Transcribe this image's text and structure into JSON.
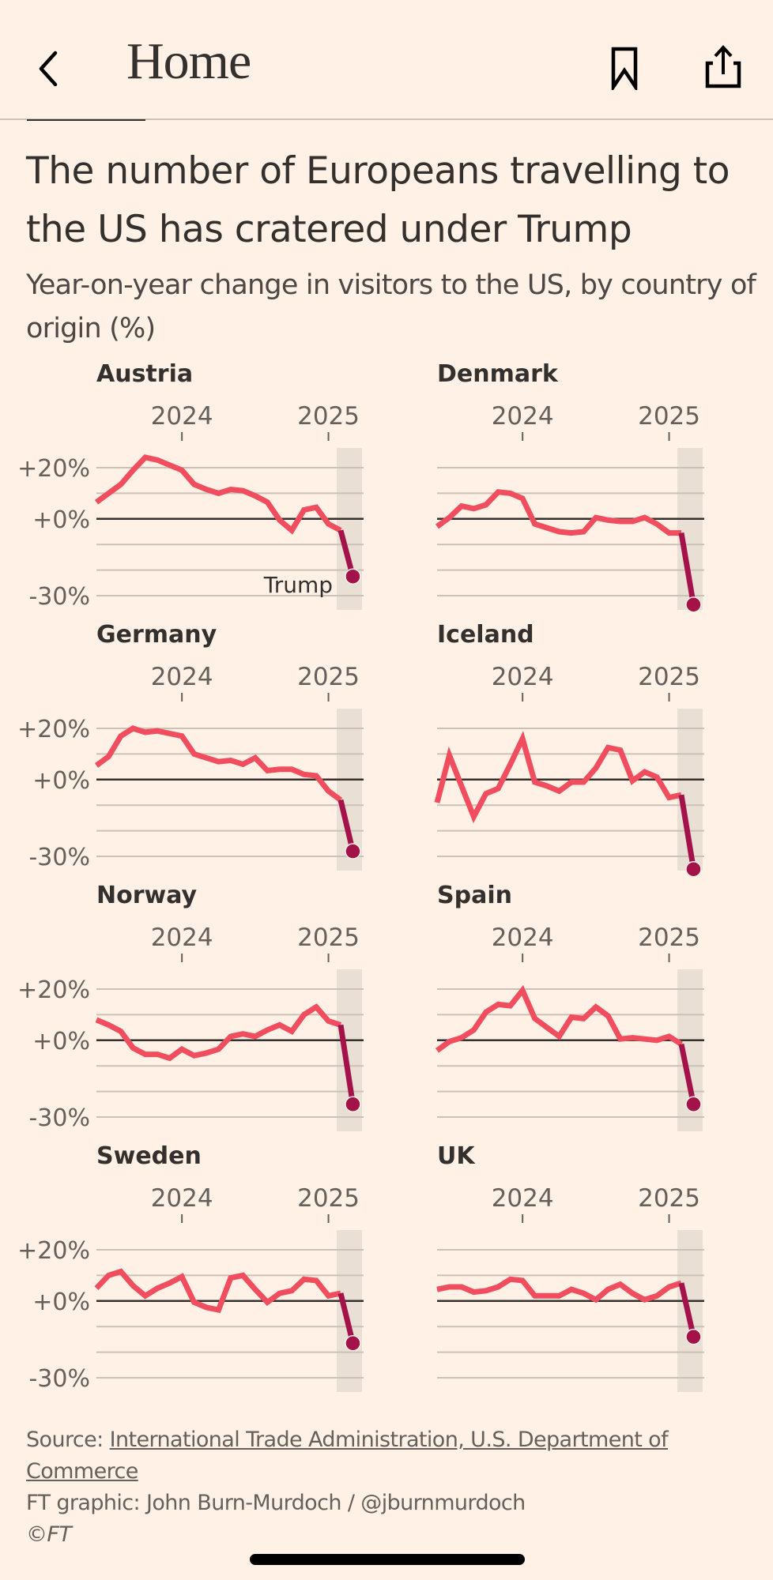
{
  "nav": {
    "back_icon": "chevron-left-icon",
    "title": "Home",
    "bookmark_icon": "bookmark-icon",
    "share_icon": "share-icon"
  },
  "article": {
    "headline": "The number of Europeans travelling to the US has cratered under Trump",
    "subhead": "Year-on-year change in visitors to the US, by country of origin (%)"
  },
  "footer": {
    "source_prefix": "Source: ",
    "source_link": "International Trade Administration, U.S. Department of Commerce",
    "credit": "FT graphic: John Burn-Murdoch / @jburnmurdoch",
    "copyright": "©FT"
  },
  "colors": {
    "background": "#fff1e5",
    "line": "#f04e5e",
    "trump_line": "#a3134a",
    "shade": "#e9dfd4",
    "grid": "#ccc1b7",
    "zero": "#33302e"
  },
  "chart_data": {
    "type": "line",
    "layout": "small-multiples-4x2",
    "title": "The number of Europeans travelling to the US has cratered under Trump",
    "subtitle": "Year-on-year change in visitors to the US, by country of origin (%)",
    "x": [
      "2023-06",
      "2023-07",
      "2023-08",
      "2023-09",
      "2023-10",
      "2023-11",
      "2023-12",
      "2024-01",
      "2024-02",
      "2024-03",
      "2024-04",
      "2024-05",
      "2024-06",
      "2024-07",
      "2024-08",
      "2024-09",
      "2024-10",
      "2024-11",
      "2024-12",
      "2025-01",
      "2025-02",
      "2025-03"
    ],
    "x_ticks": [
      {
        "value": "2024-01",
        "label": "2024"
      },
      {
        "value": "2025-01",
        "label": "2025"
      }
    ],
    "y_ticks": [
      {
        "value": 20,
        "label": "+20%"
      },
      {
        "value": 0,
        "label": "+0%"
      },
      {
        "value": -30,
        "label": "-30%"
      }
    ],
    "y_grid": [
      20,
      10,
      0,
      -10,
      -20,
      -30
    ],
    "ylim": [
      -30,
      20
    ],
    "grid": true,
    "highlight": {
      "from": "2025-02",
      "to": "2025-03",
      "label": "Trump",
      "label_panel": "Austria"
    },
    "xlabel": "",
    "ylabel": "",
    "series": [
      {
        "name": "Austria",
        "values": [
          6.5,
          10,
          13.5,
          19,
          24,
          23,
          21,
          19,
          13.5,
          11.5,
          10,
          11.5,
          11,
          9,
          6.5,
          -0.5,
          -4.5,
          3.5,
          4.5,
          -2,
          -4.5,
          -22.5
        ]
      },
      {
        "name": "Denmark",
        "values": [
          -3,
          0.5,
          5,
          4,
          5.5,
          10.5,
          10,
          8,
          -2,
          -3.5,
          -5,
          -5.5,
          -5,
          0.5,
          -0.5,
          -1,
          -1,
          0.5,
          -2,
          -5.5,
          -5.5,
          -33.5
        ]
      },
      {
        "name": "Germany",
        "values": [
          5.5,
          9,
          17,
          20,
          18.5,
          19,
          18,
          17,
          10,
          8.5,
          7,
          7.5,
          6,
          8.5,
          3.5,
          4,
          4,
          2,
          1.5,
          -4.5,
          -8,
          -28
        ]
      },
      {
        "name": "Iceland",
        "values": [
          -9,
          9.5,
          -2.5,
          -14.5,
          -5.5,
          -3.5,
          6,
          16,
          -1,
          -2.5,
          -4.5,
          -1,
          -1,
          4.5,
          12.5,
          11.5,
          -0.5,
          3,
          1,
          -7,
          -6,
          -35
        ]
      },
      {
        "name": "Norway",
        "values": [
          8,
          6,
          3.5,
          -3,
          -5.5,
          -5.5,
          -7,
          -3.5,
          -6,
          -5,
          -3.5,
          1.5,
          2.5,
          1.5,
          4,
          6,
          3.5,
          10,
          13,
          7.5,
          6,
          -25
        ]
      },
      {
        "name": "Spain",
        "values": [
          -4,
          -0.5,
          1,
          4,
          11,
          14,
          13.5,
          19.5,
          8.5,
          5,
          1.5,
          9,
          8.5,
          13,
          9.5,
          0.5,
          1,
          0.5,
          0,
          1.5,
          -1.5,
          -25
        ]
      },
      {
        "name": "Sweden",
        "values": [
          5,
          10,
          11.5,
          6,
          2,
          5,
          7,
          9.5,
          -0.5,
          -2.5,
          -3.5,
          9,
          10,
          4.5,
          -0.5,
          3,
          4,
          8.5,
          8,
          2,
          3,
          -16.5
        ]
      },
      {
        "name": "UK",
        "values": [
          4.5,
          5.5,
          5.5,
          3.5,
          4,
          5.5,
          8.5,
          8,
          2,
          2,
          2,
          4.5,
          3,
          0.5,
          4.5,
          6.5,
          3,
          0.5,
          2,
          5.5,
          7,
          -14
        ]
      }
    ]
  }
}
